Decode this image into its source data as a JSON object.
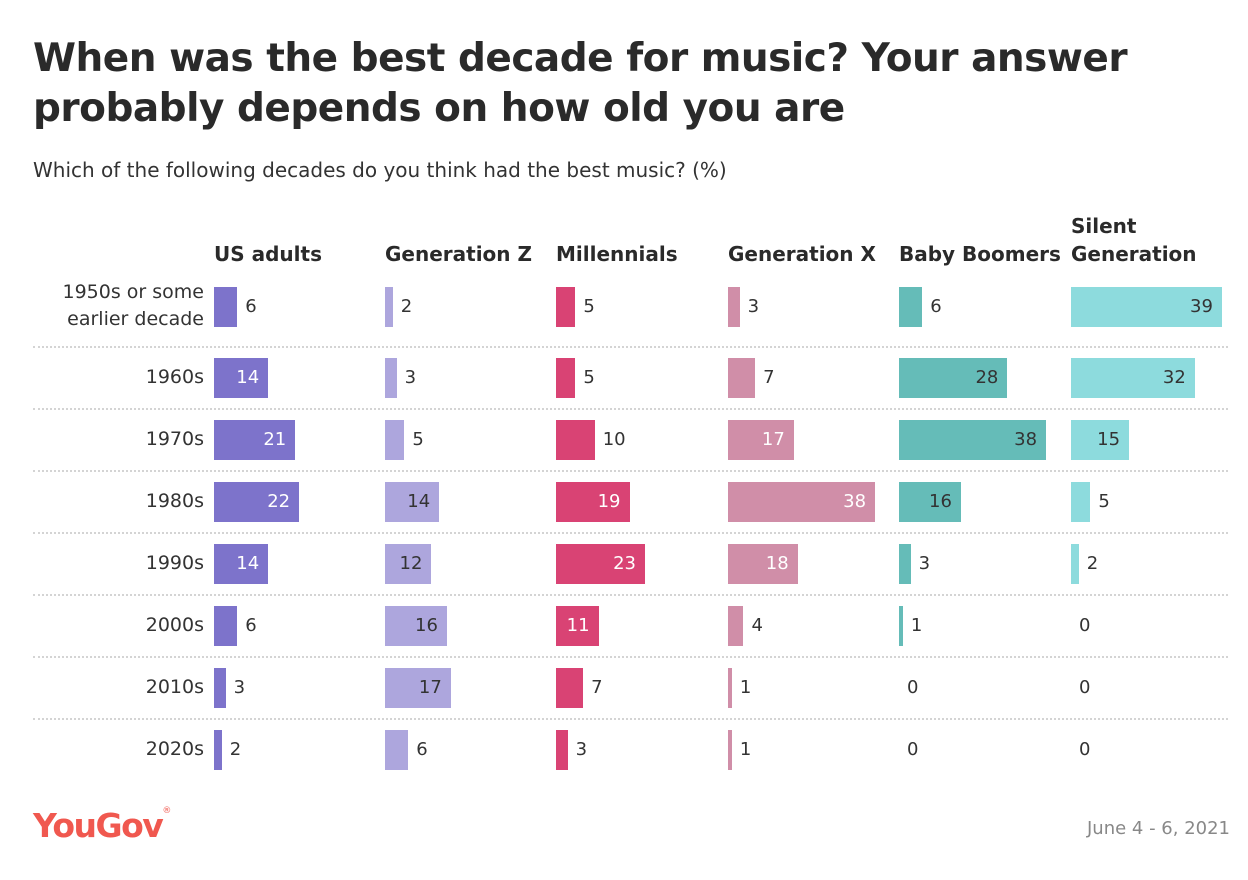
{
  "title": "When was the best decade for music? Your answer probably depends on how old you are",
  "subtitle": "Which of the following decades do you think had the best music? (%)",
  "logo": "YouGov",
  "date": "June 4 - 6, 2021",
  "chart_data": {
    "type": "bar",
    "orientation": "horizontal small multiples",
    "categories": [
      "1950s or some earlier decade",
      "1960s",
      "1970s",
      "1980s",
      "1990s",
      "2000s",
      "2010s",
      "2020s"
    ],
    "series": [
      {
        "name": "US adults",
        "color": "#7d73cb",
        "label_color": "#ffffff",
        "values": [
          6,
          14,
          21,
          22,
          14,
          6,
          3,
          2
        ]
      },
      {
        "name": "Generation Z",
        "color": "#ada6dd",
        "label_color": "#333333",
        "values": [
          2,
          3,
          5,
          14,
          12,
          16,
          17,
          6
        ]
      },
      {
        "name": "Millennials",
        "color": "#d94374",
        "label_color": "#ffffff",
        "values": [
          5,
          5,
          10,
          19,
          23,
          11,
          7,
          3
        ]
      },
      {
        "name": "Generation X",
        "color": "#d08ea8",
        "label_color": "#ffffff",
        "values": [
          3,
          7,
          17,
          38,
          18,
          4,
          1,
          1
        ]
      },
      {
        "name": "Baby Boomers",
        "color": "#65bcb8",
        "label_color": "#333333",
        "values": [
          6,
          28,
          38,
          16,
          3,
          1,
          0,
          0
        ]
      },
      {
        "name": "Silent Generation",
        "color": "#8ddbdd",
        "label_color": "#333333",
        "values": [
          39,
          32,
          15,
          5,
          2,
          0,
          0,
          0
        ]
      }
    ],
    "unit": "%"
  }
}
